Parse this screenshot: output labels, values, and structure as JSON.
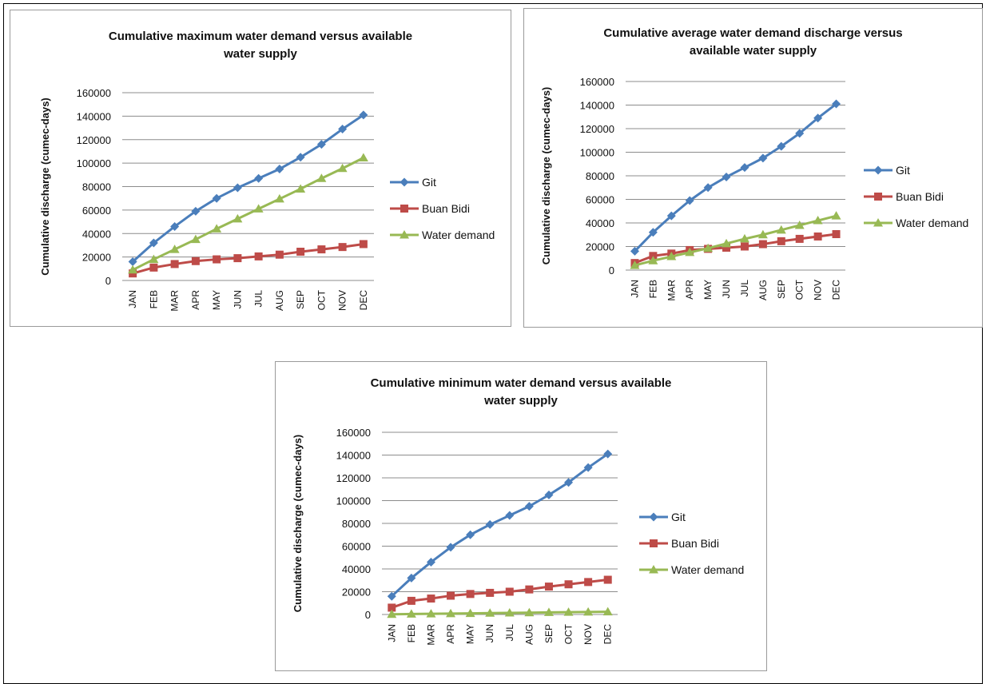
{
  "chart_data": [
    {
      "type": "line",
      "title_line1": "Cumulative maximum water demand versus available",
      "title_line2": "water supply",
      "xlabel": "",
      "ylabel": "Cumulative discharge (cumec-days)",
      "ylim": [
        0,
        160000
      ],
      "yticks": [
        "0",
        "20000",
        "40000",
        "60000",
        "80000",
        "100000",
        "120000",
        "140000",
        "160000"
      ],
      "categories": [
        "JAN",
        "FEB",
        "MAR",
        "APR",
        "MAY",
        "JUN",
        "JUL",
        "AUG",
        "SEP",
        "OCT",
        "NOV",
        "DEC"
      ],
      "grid": true,
      "legend_position": "right",
      "series": [
        {
          "name": "Git",
          "color": "#4a7ebb",
          "marker": "diamond",
          "values": [
            16000,
            32000,
            46000,
            59000,
            70000,
            79000,
            87000,
            95000,
            105000,
            116000,
            129000,
            141000
          ]
        },
        {
          "name": "Buan Bidi",
          "color": "#be4b48",
          "marker": "square",
          "values": [
            6000,
            11000,
            14000,
            16500,
            18000,
            19000,
            20500,
            22000,
            24500,
            26500,
            28500,
            31000
          ]
        },
        {
          "name": "Water demand",
          "color": "#98b954",
          "marker": "triangle",
          "values": [
            9000,
            18000,
            26500,
            35000,
            44000,
            52500,
            61000,
            69500,
            78000,
            87000,
            95500,
            104500
          ]
        }
      ]
    },
    {
      "type": "line",
      "title_line1": "Cumulative average water demand discharge versus",
      "title_line2": "available water supply",
      "xlabel": "",
      "ylabel": "Cumulative discharge (cumec-days)",
      "ylim": [
        0,
        160000
      ],
      "yticks": [
        "0",
        "20000",
        "40000",
        "60000",
        "80000",
        "100000",
        "120000",
        "140000",
        "160000"
      ],
      "categories": [
        "JAN",
        "FEB",
        "MAR",
        "APR",
        "MAY",
        "JUN",
        "JUL",
        "AUG",
        "SEP",
        "OCT",
        "NOV",
        "DEC"
      ],
      "grid": true,
      "legend_position": "right",
      "series": [
        {
          "name": "Git",
          "color": "#4a7ebb",
          "marker": "diamond",
          "values": [
            16000,
            32000,
            46000,
            59000,
            70000,
            79000,
            87000,
            95000,
            105000,
            116000,
            129000,
            141000
          ]
        },
        {
          "name": "Buan Bidi",
          "color": "#be4b48",
          "marker": "square",
          "values": [
            6000,
            12000,
            14000,
            17000,
            18000,
            19000,
            20000,
            22000,
            24500,
            26500,
            28500,
            30500
          ]
        },
        {
          "name": "Water demand",
          "color": "#98b954",
          "marker": "triangle",
          "values": [
            4000,
            8000,
            11500,
            15000,
            18500,
            22500,
            26500,
            30000,
            34000,
            38000,
            42000,
            46000
          ]
        }
      ]
    },
    {
      "type": "line",
      "title_line1": "Cumulative minimum  water demand versus available",
      "title_line2": "water supply",
      "xlabel": "",
      "ylabel": "Cumulative discharge (cumec-days)",
      "ylim": [
        0,
        160000
      ],
      "yticks": [
        "0",
        "20000",
        "40000",
        "60000",
        "80000",
        "100000",
        "120000",
        "140000",
        "160000"
      ],
      "categories": [
        "JAN",
        "FEB",
        "MAR",
        "APR",
        "MAY",
        "JUN",
        "JUL",
        "AUG",
        "SEP",
        "OCT",
        "NOV",
        "DEC"
      ],
      "grid": true,
      "legend_position": "right",
      "series": [
        {
          "name": "Git",
          "color": "#4a7ebb",
          "marker": "diamond",
          "values": [
            16000,
            32000,
            46000,
            59000,
            70000,
            79000,
            87000,
            95000,
            105000,
            116000,
            129000,
            141000
          ]
        },
        {
          "name": "Buan Bidi",
          "color": "#be4b48",
          "marker": "square",
          "values": [
            6000,
            12000,
            14000,
            16500,
            18000,
            19000,
            20000,
            22000,
            24500,
            26500,
            28500,
            30500
          ]
        },
        {
          "name": "Water demand",
          "color": "#98b954",
          "marker": "triangle",
          "values": [
            200,
            400,
            600,
            800,
            1000,
            1200,
            1400,
            1600,
            1800,
            2000,
            2200,
            2400
          ]
        }
      ]
    }
  ]
}
